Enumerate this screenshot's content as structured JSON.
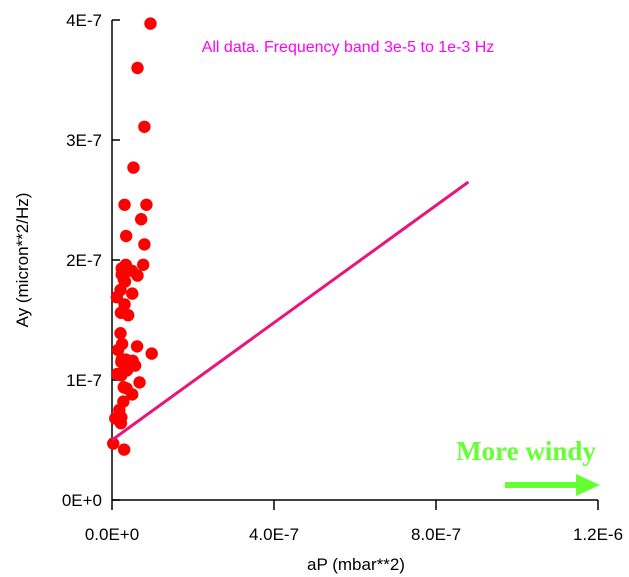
{
  "chart_data": {
    "type": "scatter",
    "xlabel": "aP (mbar**2)",
    "ylabel": "Ay (micron**2/Hz)",
    "xlim": [
      0,
      1.2e-06
    ],
    "ylim": [
      0,
      4e-07
    ],
    "x_ticks": [
      0,
      4e-07,
      8e-07,
      1.2e-06
    ],
    "x_tick_labels": [
      "0.0E+0",
      "4.0E-7",
      "8.0E-7",
      "1.2E-6"
    ],
    "y_ticks": [
      0,
      1e-07,
      2e-07,
      3e-07,
      4e-07
    ],
    "y_tick_labels": [
      "0E+0",
      "1E-7",
      "2E-7",
      "3E-7",
      "4E-7"
    ],
    "annotation": "All data. Frequency band 3e-5 to 1e-3 Hz",
    "secondary_annotation": "More windy",
    "grid": false,
    "points": [
      {
        "x": 3e-09,
        "y": 4.7e-08
      },
      {
        "x": 8e-09,
        "y": 6.8e-08
      },
      {
        "x": 1.2e-08,
        "y": 1.69e-07
      },
      {
        "x": 1.3e-08,
        "y": 1.05e-07
      },
      {
        "x": 1.5e-08,
        "y": 1.25e-07
      },
      {
        "x": 1.8e-08,
        "y": 7.5e-08
      },
      {
        "x": 2.1e-08,
        "y": 1.75e-07
      },
      {
        "x": 2.1e-08,
        "y": 1.39e-07
      },
      {
        "x": 2.2e-08,
        "y": 1.56e-07
      },
      {
        "x": 2.2e-08,
        "y": 6.4e-08
      },
      {
        "x": 2.3e-08,
        "y": 1.15e-07
      },
      {
        "x": 2.3e-08,
        "y": 6.9e-08
      },
      {
        "x": 2.3e-08,
        "y": 1.04e-07
      },
      {
        "x": 2.4e-08,
        "y": 1.88e-07
      },
      {
        "x": 2.4e-08,
        "y": 1.93e-07
      },
      {
        "x": 2.4e-08,
        "y": 1.17e-07
      },
      {
        "x": 2.5e-08,
        "y": 1.3e-07
      },
      {
        "x": 2.6e-08,
        "y": 1.16e-07
      },
      {
        "x": 2.8e-08,
        "y": 8.2e-08
      },
      {
        "x": 2.9e-08,
        "y": 1.89e-07
      },
      {
        "x": 2.9e-08,
        "y": 1.84e-07
      },
      {
        "x": 2.9e-08,
        "y": 9.4e-08
      },
      {
        "x": 3e-08,
        "y": 4.2e-08
      },
      {
        "x": 3.1e-08,
        "y": 2.46e-07
      },
      {
        "x": 3.1e-08,
        "y": 1.63e-07
      },
      {
        "x": 3.2e-08,
        "y": 1.82e-07
      },
      {
        "x": 3.2e-08,
        "y": 1.11e-07
      },
      {
        "x": 3.4e-08,
        "y": 1.96e-07
      },
      {
        "x": 3.4e-08,
        "y": 1.17e-07
      },
      {
        "x": 3.5e-08,
        "y": 2.2e-07
      },
      {
        "x": 3.6e-08,
        "y": 9.3e-08
      },
      {
        "x": 3.7e-08,
        "y": 1.08e-07
      },
      {
        "x": 4e-08,
        "y": 1.54e-07
      },
      {
        "x": 4.6e-08,
        "y": 1.13e-07
      },
      {
        "x": 4.9e-08,
        "y": 1.91e-07
      },
      {
        "x": 5e-08,
        "y": 1.72e-07
      },
      {
        "x": 5e-08,
        "y": 8.8e-08
      },
      {
        "x": 5.1e-08,
        "y": 1.16e-07
      },
      {
        "x": 5.3e-08,
        "y": 2.77e-07
      },
      {
        "x": 5.7e-08,
        "y": 1.12e-07
      },
      {
        "x": 6.2e-08,
        "y": 1.28e-07
      },
      {
        "x": 6.3e-08,
        "y": 3.6e-07
      },
      {
        "x": 6.3e-08,
        "y": 1.87e-07
      },
      {
        "x": 6.8e-08,
        "y": 9.8e-08
      },
      {
        "x": 7.2e-08,
        "y": 2.34e-07
      },
      {
        "x": 7.7e-08,
        "y": 1.96e-07
      },
      {
        "x": 8e-08,
        "y": 3.11e-07
      },
      {
        "x": 8e-08,
        "y": 2.13e-07
      },
      {
        "x": 8.5e-08,
        "y": 2.46e-07
      },
      {
        "x": 9.5e-08,
        "y": 3.97e-07
      },
      {
        "x": 9.8e-08,
        "y": 1.22e-07
      }
    ],
    "fit_line": {
      "x": [
        0,
        8.8e-07
      ],
      "y": [
        5e-08,
        2.65e-07
      ]
    },
    "colors": {
      "points": "#ff0000",
      "fit_line": "#e8157a",
      "annotation": "#ff00ff",
      "secondary_annotation": "#66ff33",
      "axes": "#000000"
    }
  }
}
